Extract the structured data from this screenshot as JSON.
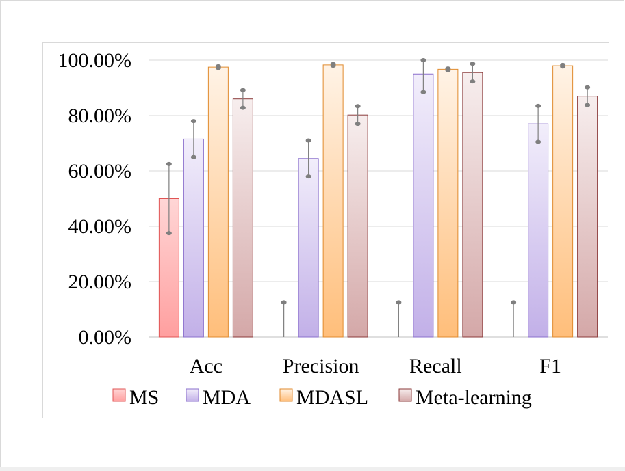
{
  "chart_data": {
    "type": "bar",
    "categories": [
      "Acc",
      "Precision",
      "Recall",
      "F1"
    ],
    "series": [
      {
        "name": "MS",
        "values": [
          50,
          0,
          0,
          0
        ],
        "error": [
          12.5,
          12.5,
          12.5,
          12.5
        ],
        "color_top": "#ffd6d6",
        "color_bottom": "#ff9f9f",
        "stroke": "#e05555"
      },
      {
        "name": "MDA",
        "values": [
          71.5,
          64.5,
          95,
          77
        ],
        "error": [
          6.5,
          6.5,
          6.5,
          6.5
        ],
        "color_top": "#f2eefb",
        "color_bottom": "#c2b0e8",
        "stroke": "#8a6fcc"
      },
      {
        "name": "MDASL",
        "values": [
          97.5,
          98.3,
          96.7,
          98
        ],
        "error": [
          0.3,
          0.3,
          0.3,
          0.3
        ],
        "color_top": "#fff3e6",
        "color_bottom": "#ffbe7a",
        "stroke": "#e08a2c"
      },
      {
        "name": "Meta-learning",
        "values": [
          86,
          80.2,
          95.5,
          87
        ],
        "error": [
          3.2,
          3.2,
          3.2,
          3.2
        ],
        "color_top": "#f7eeee",
        "color_bottom": "#d4a8a8",
        "stroke": "#8b3a3a"
      }
    ],
    "yticks": [
      "0.00%",
      "20.00%",
      "40.00%",
      "60.00%",
      "80.00%",
      "100.00%"
    ],
    "ylim": [
      0,
      100
    ],
    "grid": true,
    "legend_position": "bottom"
  }
}
